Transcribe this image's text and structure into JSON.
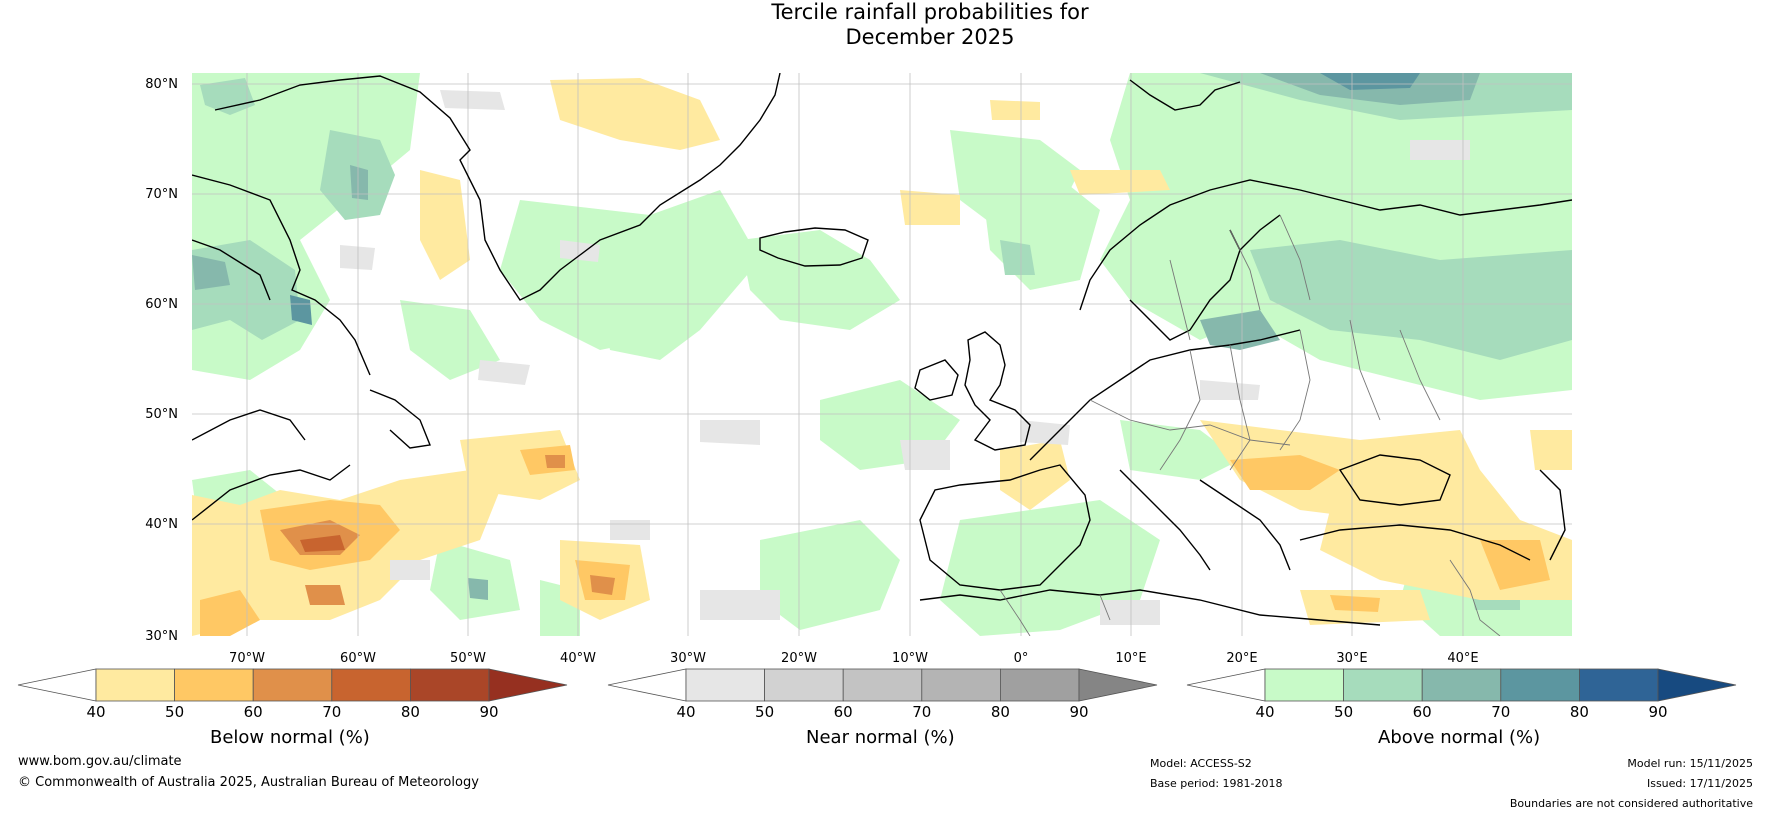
{
  "title_line1": "Tercile rainfall probabilities for",
  "title_line2": "December 2025",
  "lat_labels": [
    "80°N",
    "70°N",
    "60°N",
    "50°N",
    "40°N",
    "30°N"
  ],
  "lon_labels": [
    "70°W",
    "60°W",
    "50°W",
    "40°W",
    "30°W",
    "20°W",
    "10°W",
    "0°",
    "10°E",
    "20°E",
    "30°E",
    "40°E"
  ],
  "legends": [
    {
      "name": "below",
      "title": "Below normal (%)",
      "ticks": [
        "40",
        "50",
        "60",
        "70",
        "80",
        "90"
      ],
      "colors": [
        "#ffffff",
        "#ffeaa0",
        "#ffc864",
        "#e0904a",
        "#c8642f",
        "#aa4628",
        "#963020"
      ]
    },
    {
      "name": "near",
      "title": "Near normal (%)",
      "ticks": [
        "40",
        "50",
        "60",
        "70",
        "80",
        "90"
      ],
      "colors": [
        "#ffffff",
        "#e6e6e6",
        "#d2d2d2",
        "#c3c3c3",
        "#b4b4b4",
        "#a0a0a0",
        "#858585"
      ]
    },
    {
      "name": "above",
      "title": "Above normal (%)",
      "ticks": [
        "40",
        "50",
        "60",
        "70",
        "80",
        "90"
      ],
      "colors": [
        "#ffffff",
        "#c8fac8",
        "#a6dcbc",
        "#86b8ac",
        "#5c96a0",
        "#2f6496",
        "#174a80"
      ]
    }
  ],
  "footer": {
    "website": "www.bom.gov.au/climate",
    "copyright": "© Commonwealth of Australia 2025, Australian Bureau of Meteorology",
    "model": "Model: ACCESS-S2",
    "base_period": "Base period: 1981-2018",
    "model_run": "Model run: 15/11/2025",
    "issued": "Issued: 17/11/2025",
    "disclaimer": "Boundaries are not considered authoritative"
  }
}
